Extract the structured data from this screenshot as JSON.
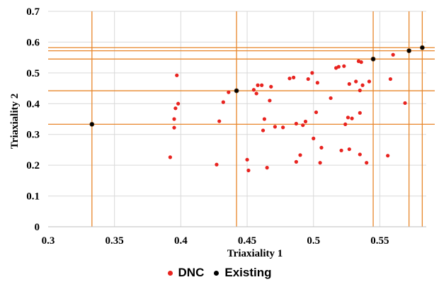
{
  "chart_data": {
    "type": "scatter",
    "xlabel": "Triaxiality 1",
    "ylabel": "Triaxiality 2",
    "xlim": [
      0.3,
      0.585
    ],
    "ylim": [
      0,
      0.7
    ],
    "xticks": [
      "0.3",
      "0.35",
      "0.4",
      "0.45",
      "0.5",
      "0.55"
    ],
    "yticks": [
      "0",
      "0.1",
      "0.2",
      "0.3",
      "0.4",
      "0.5",
      "0.6",
      "0.7"
    ],
    "grid": true,
    "legend_position": "bottom",
    "series": [
      {
        "name": "DNC",
        "color": "#e8231f",
        "points": [
          [
            0.397,
            0.492
          ],
          [
            0.398,
            0.4
          ],
          [
            0.396,
            0.385
          ],
          [
            0.395,
            0.35
          ],
          [
            0.395,
            0.322
          ],
          [
            0.392,
            0.226
          ],
          [
            0.427,
            0.202
          ],
          [
            0.429,
            0.343
          ],
          [
            0.432,
            0.405
          ],
          [
            0.436,
            0.437
          ],
          [
            0.455,
            0.445
          ],
          [
            0.457,
            0.433
          ],
          [
            0.458,
            0.46
          ],
          [
            0.461,
            0.46
          ],
          [
            0.462,
            0.313
          ],
          [
            0.463,
            0.35
          ],
          [
            0.467,
            0.41
          ],
          [
            0.468,
            0.455
          ],
          [
            0.471,
            0.325
          ],
          [
            0.477,
            0.323
          ],
          [
            0.482,
            0.482
          ],
          [
            0.485,
            0.485
          ],
          [
            0.487,
            0.211
          ],
          [
            0.487,
            0.335
          ],
          [
            0.49,
            0.233
          ],
          [
            0.492,
            0.33
          ],
          [
            0.494,
            0.342
          ],
          [
            0.496,
            0.48
          ],
          [
            0.499,
            0.5
          ],
          [
            0.5,
            0.287
          ],
          [
            0.502,
            0.372
          ],
          [
            0.503,
            0.468
          ],
          [
            0.505,
            0.208
          ],
          [
            0.506,
            0.257
          ],
          [
            0.513,
            0.418
          ],
          [
            0.517,
            0.516
          ],
          [
            0.519,
            0.52
          ],
          [
            0.521,
            0.248
          ],
          [
            0.523,
            0.522
          ],
          [
            0.524,
            0.333
          ],
          [
            0.526,
            0.355
          ],
          [
            0.527,
            0.464
          ],
          [
            0.527,
            0.252
          ],
          [
            0.529,
            0.352
          ],
          [
            0.532,
            0.472
          ],
          [
            0.534,
            0.538
          ],
          [
            0.535,
            0.235
          ],
          [
            0.535,
            0.37
          ],
          [
            0.535,
            0.443
          ],
          [
            0.536,
            0.535
          ],
          [
            0.537,
            0.46
          ],
          [
            0.54,
            0.208
          ],
          [
            0.542,
            0.472
          ],
          [
            0.45,
            0.218
          ],
          [
            0.451,
            0.183
          ],
          [
            0.465,
            0.192
          ],
          [
            0.556,
            0.231
          ],
          [
            0.558,
            0.48
          ],
          [
            0.56,
            0.559
          ],
          [
            0.569,
            0.402
          ]
        ]
      },
      {
        "name": "Existing",
        "color": "#000000",
        "points": [
          [
            0.333,
            0.333
          ],
          [
            0.442,
            0.442
          ],
          [
            0.545,
            0.545
          ],
          [
            0.572,
            0.572
          ],
          [
            0.582,
            0.582
          ]
        ]
      }
    ],
    "reference_lines": {
      "color": "#e8862a",
      "x": [
        0.333,
        0.442,
        0.545,
        0.572,
        0.582
      ],
      "y": [
        0.333,
        0.442,
        0.545,
        0.572,
        0.582
      ]
    }
  }
}
